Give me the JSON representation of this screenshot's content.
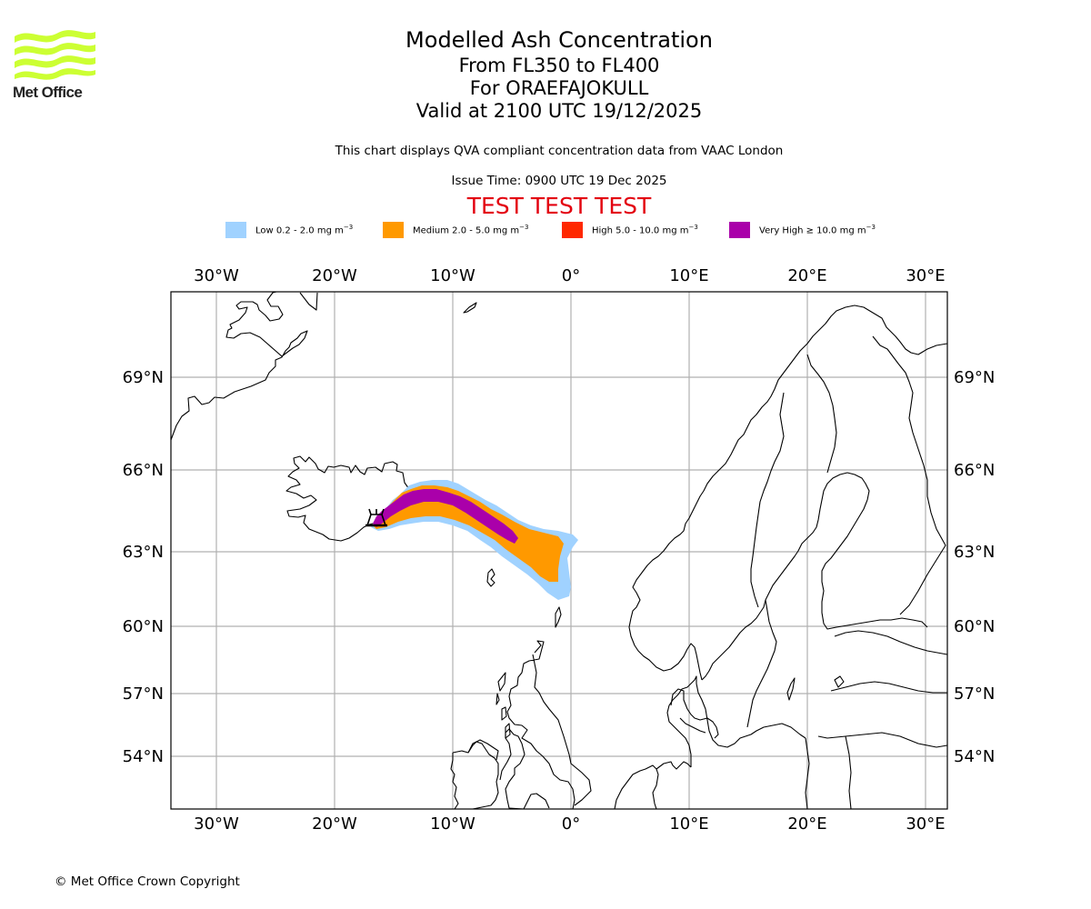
{
  "logo": {
    "brand": "Met Office",
    "icon": "met-office-waves-logo",
    "color": "#ccff33"
  },
  "title": {
    "main": "Modelled Ash Concentration",
    "levels": "From FL350 to FL400",
    "volcano": "For ORAEFAJOKULL",
    "valid": "Valid at 2100 UTC 19/12/2025"
  },
  "description": "This chart displays QVA compliant concentration data from VAAC London",
  "issue_time": "Issue Time: 0900 UTC 19 Dec 2025",
  "test_banner": {
    "text": "TEST TEST TEST",
    "color": "#e3000f"
  },
  "legend": [
    {
      "label": "Low 0.2 - 2.0 mg m",
      "exp": "−3",
      "color": "#a0d2ff"
    },
    {
      "label": "Medium 2.0 - 5.0 mg m",
      "exp": "−3",
      "color": "#ff9900"
    },
    {
      "label": "High 5.0 - 10.0 mg m",
      "exp": "−3",
      "color": "#ff2800"
    },
    {
      "label": "Very High ≥ 10.0 mg m",
      "exp": "−3",
      "color": "#aa00aa"
    }
  ],
  "chart_data": {
    "type": "map",
    "title": "Modelled Ash Concentration",
    "projection": "lat-lon map, North Atlantic / Northern Europe",
    "lon_range": [
      -34,
      32
    ],
    "lat_range": [
      52,
      71
    ],
    "lon_ticks": [
      {
        "value": -30,
        "label": "30°W"
      },
      {
        "value": -20,
        "label": "20°W"
      },
      {
        "value": -10,
        "label": "10°W"
      },
      {
        "value": 0,
        "label": "0°"
      },
      {
        "value": 10,
        "label": "10°E"
      },
      {
        "value": 20,
        "label": "20°E"
      },
      {
        "value": 30,
        "label": "30°E"
      }
    ],
    "lat_ticks": [
      {
        "value": 69,
        "label": "69°N"
      },
      {
        "value": 66,
        "label": "66°N"
      },
      {
        "value": 63,
        "label": "63°N"
      },
      {
        "value": 60,
        "label": "60°N"
      },
      {
        "value": 57,
        "label": "57°N"
      },
      {
        "value": 54,
        "label": "54°N"
      }
    ],
    "grid": true,
    "volcano": {
      "name": "ORAEFAJOKULL",
      "lon": -16.6,
      "lat": 64.0,
      "symbol": "volcano-icon"
    },
    "plume_levels": [
      {
        "name": "Low",
        "range": "0.2 - 2.0 mg m-3",
        "color": "#a0d2ff"
      },
      {
        "name": "Medium",
        "range": "2.0 - 5.0 mg m-3",
        "color": "#ff9900"
      },
      {
        "name": "High",
        "range": "5.0 - 10.0 mg m-3",
        "color": "#ff2800"
      },
      {
        "name": "Very High",
        "range": ">= 10.0 mg m-3",
        "color": "#aa00aa"
      }
    ],
    "plume_extent": {
      "from": {
        "lon": -17,
        "lat": 63.9
      },
      "to": {
        "lon": 0.5,
        "lat": 61.2
      },
      "description": "Plume from Oraefajokull extending east-southeast to near 0° / 61-64°N"
    }
  },
  "footer": {
    "copyright": "© Met Office Crown Copyright"
  }
}
